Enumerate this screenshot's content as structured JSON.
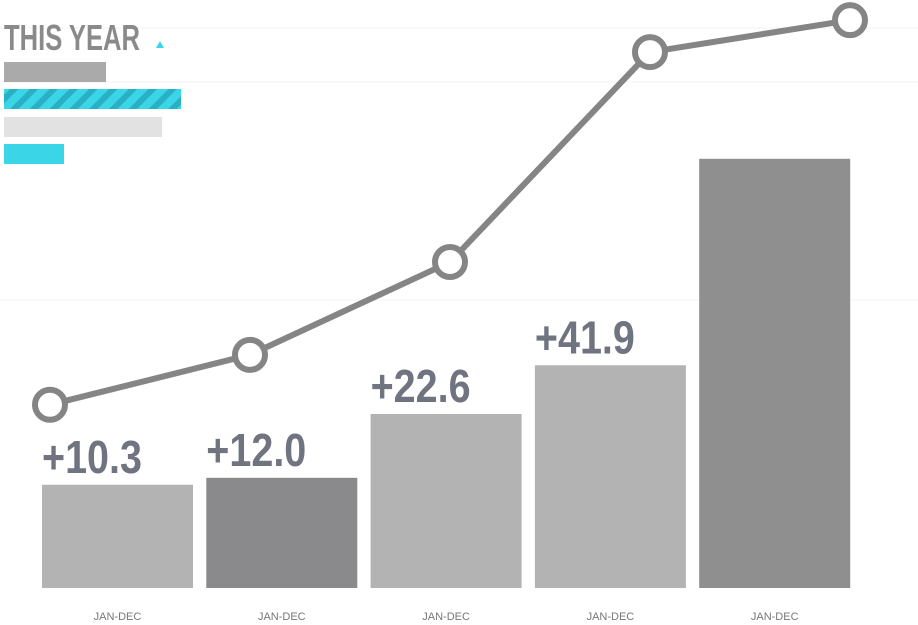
{
  "chart_data": {
    "type": "bar",
    "title": "THIS YEAR",
    "categories": [
      "JAN-DEC",
      "JAN-DEC",
      "JAN-DEC",
      "JAN-DEC",
      "JAN-DEC"
    ],
    "series": [
      {
        "kind": "bar",
        "colors": [
          "#b3b3b3",
          "#8a8a8c",
          "#b3b3b3",
          "#b3b3b3",
          "#8f8f8f"
        ],
        "values": [
          17.8,
          19,
          30,
          38.4,
          74
        ]
      },
      {
        "kind": "line",
        "color": "#858585",
        "values": [
          31.6,
          40.2,
          56.2,
          92.4,
          97.9
        ]
      }
    ],
    "annotations": [
      "+10.3",
      "+12.0",
      "+22.6",
      "+41.9"
    ],
    "ylim": [
      0,
      100
    ]
  }
}
